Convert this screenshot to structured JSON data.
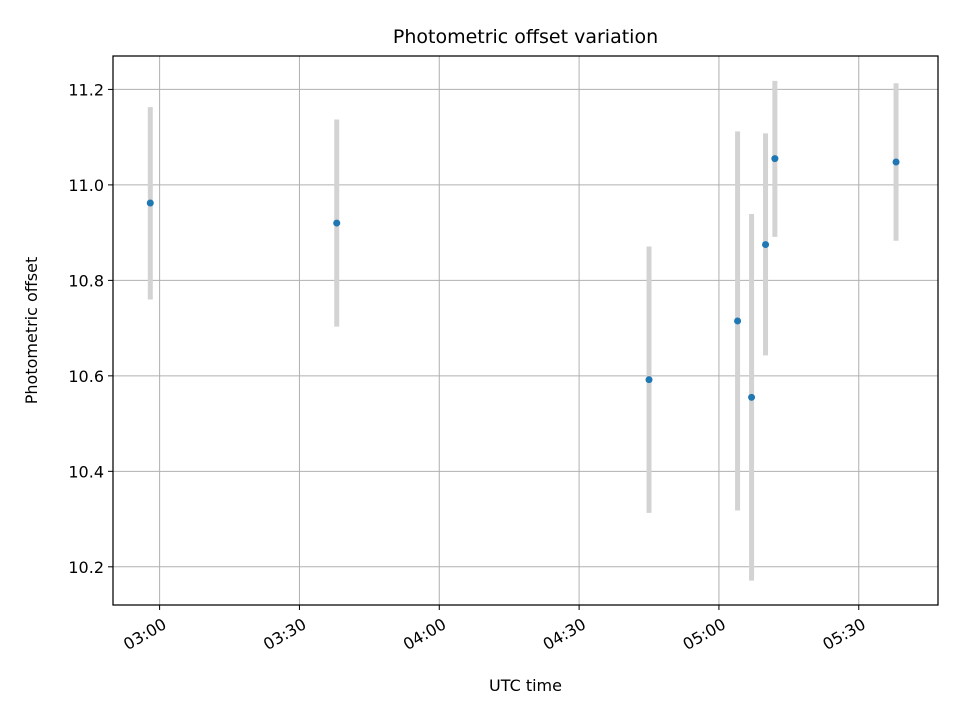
{
  "chart_data": {
    "type": "scatter",
    "title": "Photometric offset variation",
    "xlabel": "UTC time",
    "ylabel": "Photometric offset",
    "x_ticks": [
      "03:00",
      "03:30",
      "04:00",
      "04:30",
      "05:00",
      "05:30"
    ],
    "y_ticks": [
      "10.2",
      "10.4",
      "10.6",
      "10.8",
      "11.0",
      "11.2"
    ],
    "xlim": [
      "02:50",
      "05:47"
    ],
    "ylim": [
      10.12,
      11.27
    ],
    "grid": true,
    "series": [
      {
        "x": [
          "02:58",
          "03:38",
          "04:45",
          "05:04",
          "05:07",
          "05:10",
          "05:12",
          "05:38"
        ],
        "y": [
          10.962,
          10.92,
          10.592,
          10.715,
          10.555,
          10.875,
          11.055,
          11.048
        ],
        "y_low": [
          10.76,
          10.703,
          10.313,
          10.318,
          10.171,
          10.643,
          10.891,
          10.883
        ],
        "y_high": [
          11.163,
          11.137,
          10.871,
          11.112,
          10.939,
          11.108,
          11.218,
          11.213
        ]
      }
    ],
    "colors": {
      "marker": "#1f77b4",
      "errorbar": "#d3d3d3",
      "grid": "#b0b0b0",
      "axis": "#000000"
    }
  }
}
